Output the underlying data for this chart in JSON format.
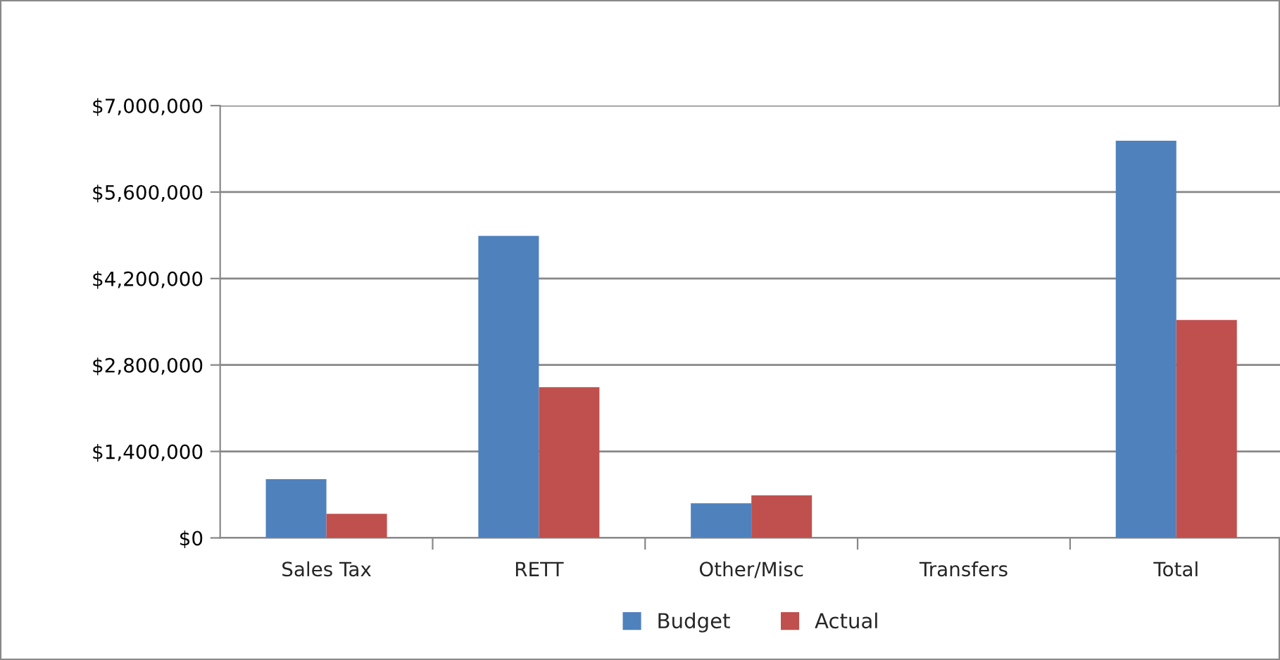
{
  "chart_data": {
    "type": "bar",
    "categories": [
      "Sales Tax",
      "RETT",
      "Other/Misc",
      "Transfers",
      "Total"
    ],
    "series": [
      {
        "name": "Budget",
        "color": "#4f81bd",
        "values": [
          950000,
          4890000,
          560000,
          0,
          6430000
        ]
      },
      {
        "name": "Actual",
        "color": "#c0504d",
        "values": [
          390000,
          2440000,
          690000,
          0,
          3530000
        ]
      }
    ],
    "ylim": [
      0,
      7000000
    ],
    "yticks": [
      {
        "value": 0,
        "label": "$0"
      },
      {
        "value": 1400000,
        "label": "$1,400,000"
      },
      {
        "value": 2800000,
        "label": "$2,800,000"
      },
      {
        "value": 4200000,
        "label": "$4,200,000"
      },
      {
        "value": 5600000,
        "label": "$5,600,000"
      },
      {
        "value": 7000000,
        "label": "$7,000,000"
      }
    ],
    "grid": "y",
    "legend": "bottom"
  }
}
